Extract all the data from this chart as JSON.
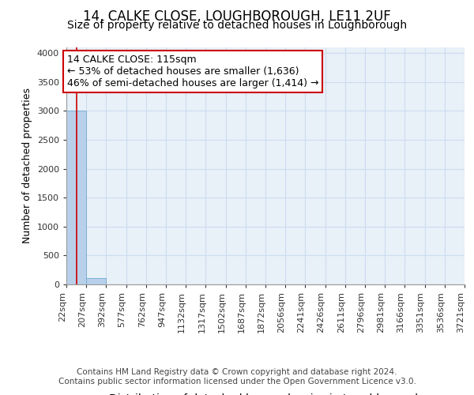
{
  "title_line1": "14, CALKE CLOSE, LOUGHBOROUGH, LE11 2UF",
  "title_line2": "Size of property relative to detached houses in Loughborough",
  "xlabel": "Distribution of detached houses by size in Loughborough",
  "ylabel": "Number of detached properties",
  "footnote1": "Contains HM Land Registry data © Crown copyright and database right 2024.",
  "footnote2": "Contains public sector information licensed under the Open Government Licence v3.0.",
  "bins": [
    22,
    207,
    392,
    577,
    762,
    947,
    1132,
    1317,
    1502,
    1687,
    1872,
    2056,
    2241,
    2426,
    2611,
    2796,
    2981,
    3166,
    3351,
    3536,
    3721
  ],
  "bar_values": [
    3000,
    110,
    0,
    0,
    0,
    0,
    0,
    0,
    0,
    0,
    0,
    0,
    0,
    0,
    0,
    0,
    0,
    0,
    0,
    0
  ],
  "bar_color": "#b8d0ea",
  "bar_edge_color": "#7aafd4",
  "grid_color": "#ccddf0",
  "background_color": "#e8f0f8",
  "vline_x": 115,
  "vline_color": "#cc0000",
  "annotation_line1": "14 CALKE CLOSE: 115sqm",
  "annotation_line2": "← 53% of detached houses are smaller (1,636)",
  "annotation_line3": "46% of semi-detached houses are larger (1,414) →",
  "annotation_box_color": "#ffffff",
  "annotation_box_edgecolor": "#cc0000",
  "ylim": [
    0,
    4100
  ],
  "yticks": [
    0,
    500,
    1000,
    1500,
    2000,
    2500,
    3000,
    3500,
    4000
  ],
  "title_fontsize": 12,
  "subtitle_fontsize": 10,
  "xlabel_fontsize": 10,
  "ylabel_fontsize": 9,
  "tick_fontsize": 8,
  "annot_fontsize": 9,
  "footnote_fontsize": 7.5
}
